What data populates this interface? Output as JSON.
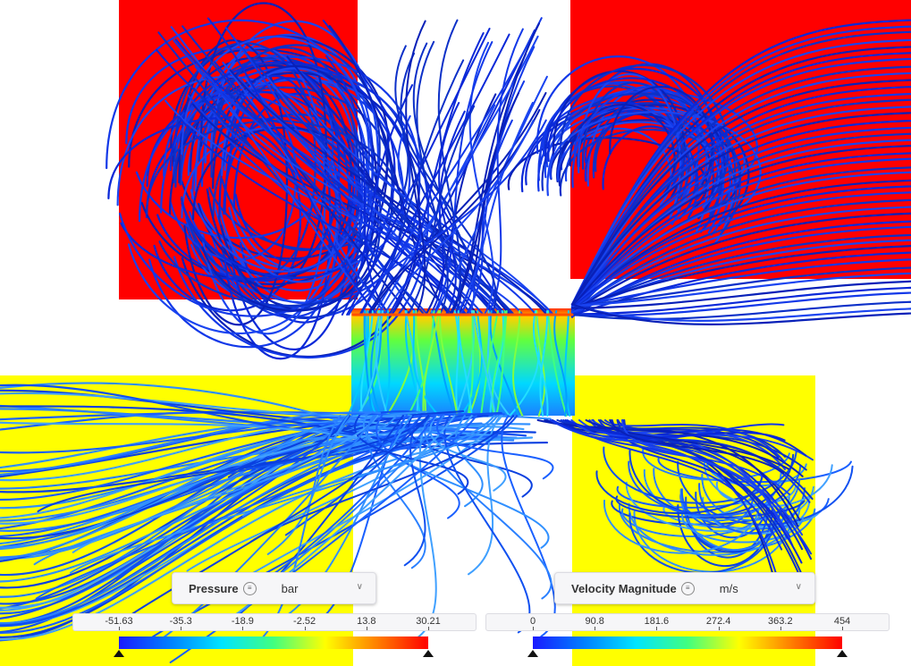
{
  "pressure_legend": {
    "quantity": "Pressure",
    "unit": "bar",
    "ticks": [
      "-51.63",
      "-35.3",
      "-18.9",
      "-2.52",
      "13.8",
      "30.21"
    ],
    "menu_icon": "menu-icon",
    "dropdown_icon": "chevron-down-icon"
  },
  "velocity_legend": {
    "quantity": "Velocity Magnitude",
    "unit": "m/s",
    "ticks": [
      "0",
      "90.8",
      "181.6",
      "272.4",
      "363.2",
      "454"
    ],
    "menu_icon": "menu-icon",
    "dropdown_icon": "chevron-down-icon"
  },
  "colors": {
    "high_pressure_surface": "#ff0000",
    "low_pressure_surface": "#ffff00",
    "streamline_low": "#1030e0",
    "background": "#ffffff"
  },
  "colormap": [
    "#1a1aff",
    "#0080ff",
    "#00e5ff",
    "#40ff80",
    "#ffff00",
    "#ff8000",
    "#ff0000"
  ]
}
